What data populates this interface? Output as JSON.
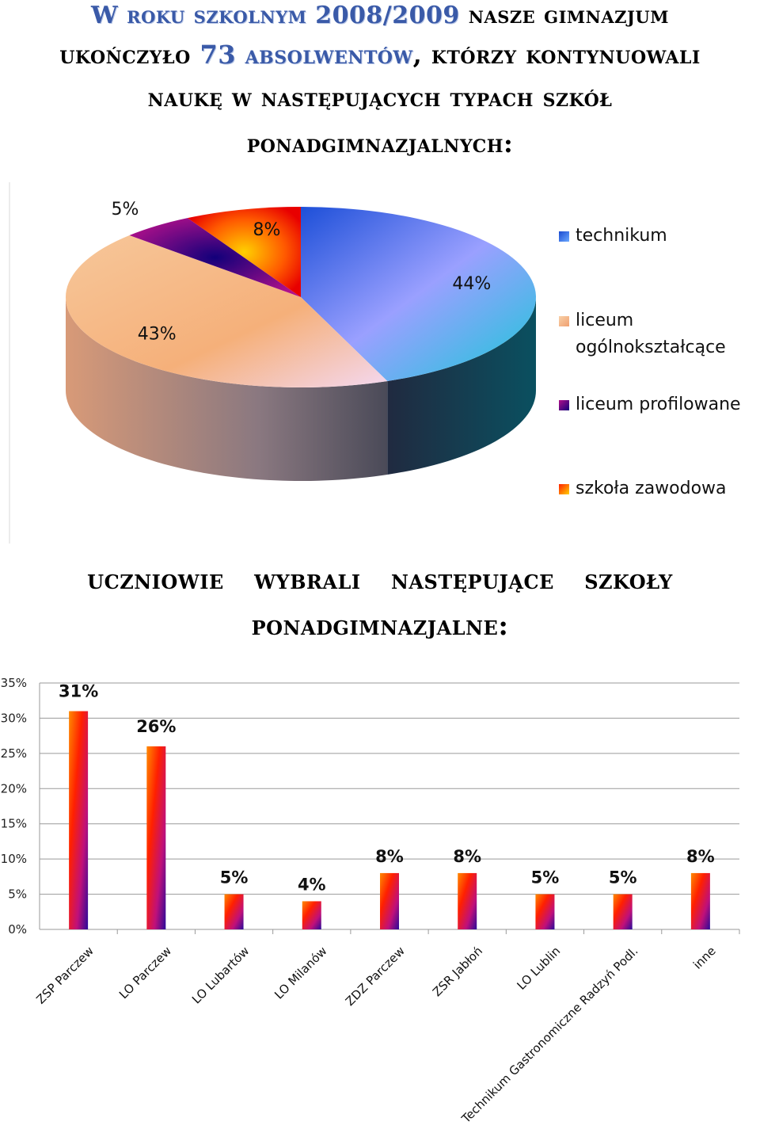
{
  "header": {
    "line1": {
      "part1": "W roku szkolnym  2008/2009",
      "part2": "nasze gimnazjum"
    },
    "line2": {
      "part1": "ukończyło",
      "count": "73",
      "word": "absolwentów",
      "part2": ", którzy kontynuowali"
    },
    "line3": "naukę  w następujących  typach szkół",
    "line4": "ponadgimnazjalnych:"
  },
  "subheading": {
    "line1": "uczniowie wybrali następujące szkoły",
    "line2": "ponadgimnazjalne:"
  },
  "chart_data": [
    {
      "type": "pie",
      "title": "",
      "legend_placement": "right",
      "slices": [
        {
          "label": "technikum",
          "value": 44,
          "value_label": "44%",
          "color": "#3a7bd5"
        },
        {
          "label": "liceum ogólnokształcące",
          "value": 43,
          "value_label": "43%",
          "color": "#f4b07a"
        },
        {
          "label": "liceum profilowane",
          "value": 5,
          "value_label": "5%",
          "color": "#5a0a8a"
        },
        {
          "label": "szkoła zawodowa",
          "value": 8,
          "value_label": "8%",
          "color": "#ff4400"
        }
      ],
      "legend": [
        {
          "text": "technikum"
        },
        {
          "text": "liceum",
          "text2": "ogólnokształcące"
        },
        {
          "text": "liceum profilowane"
        },
        {
          "text": "szkoła zawodowa"
        }
      ]
    },
    {
      "type": "bar",
      "title": "",
      "xlabel": "",
      "ylabel": "",
      "ylim": [
        0,
        35
      ],
      "grid": true,
      "y_ticks": [
        "0%",
        "5%",
        "10%",
        "15%",
        "20%",
        "25%",
        "30%",
        "35%"
      ],
      "categories": [
        "ZSP Parczew",
        "LO Parczew",
        "LO Lubartów",
        "LO Milanów",
        "ZDZ Parczew",
        "ZSR Jabłoń",
        "LO Lublin",
        "Technikum Gastronomiczne Radzyń Podl.",
        "inne"
      ],
      "values": [
        31,
        26,
        5,
        4,
        8,
        8,
        5,
        5,
        8
      ],
      "value_labels": [
        "31%",
        "26%",
        "5%",
        "4%",
        "8%",
        "8%",
        "5%",
        "5%",
        "8%"
      ]
    }
  ]
}
